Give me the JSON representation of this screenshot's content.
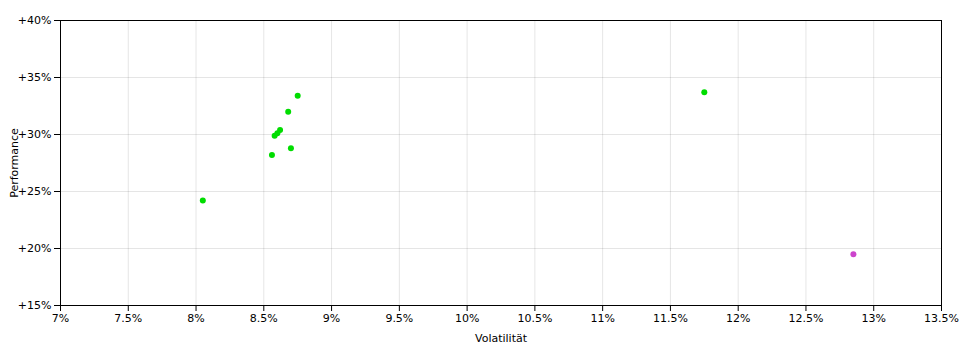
{
  "chart_data": {
    "type": "scatter",
    "xlabel": "Volatilität",
    "ylabel": "Performance",
    "xlim": [
      0.07,
      0.135
    ],
    "ylim": [
      0.15,
      0.4
    ],
    "xticks": [
      {
        "value": 0.07,
        "label": "7%"
      },
      {
        "value": 0.075,
        "label": "7.5%"
      },
      {
        "value": 0.08,
        "label": "8%"
      },
      {
        "value": 0.085,
        "label": "8.5%"
      },
      {
        "value": 0.09,
        "label": "9%"
      },
      {
        "value": 0.095,
        "label": "9.5%"
      },
      {
        "value": 0.1,
        "label": "10%"
      },
      {
        "value": 0.105,
        "label": "10.5%"
      },
      {
        "value": 0.11,
        "label": "11%"
      },
      {
        "value": 0.115,
        "label": "11.5%"
      },
      {
        "value": 0.12,
        "label": "12%"
      },
      {
        "value": 0.125,
        "label": "12.5%"
      },
      {
        "value": 0.13,
        "label": "13%"
      },
      {
        "value": 0.135,
        "label": "13.5%"
      }
    ],
    "yticks": [
      {
        "value": 0.15,
        "label": "+15%"
      },
      {
        "value": 0.2,
        "label": "+20%"
      },
      {
        "value": 0.25,
        "label": "+25%"
      },
      {
        "value": 0.3,
        "label": "+30%"
      },
      {
        "value": 0.35,
        "label": "+35%"
      },
      {
        "value": 0.4,
        "label": "+40%"
      }
    ],
    "grid": true,
    "series": [
      {
        "color": "#00dd00",
        "x": [
          0.0805,
          0.0875,
          0.0868,
          0.0862,
          0.086,
          0.0858,
          0.087,
          0.0856,
          0.1175
        ],
        "values": [
          0.242,
          0.334,
          0.32,
          0.304,
          0.301,
          0.299,
          0.288,
          0.282,
          0.337
        ]
      },
      {
        "color": "#cc44cc",
        "x": [
          0.1285
        ],
        "values": [
          0.195
        ]
      }
    ]
  }
}
